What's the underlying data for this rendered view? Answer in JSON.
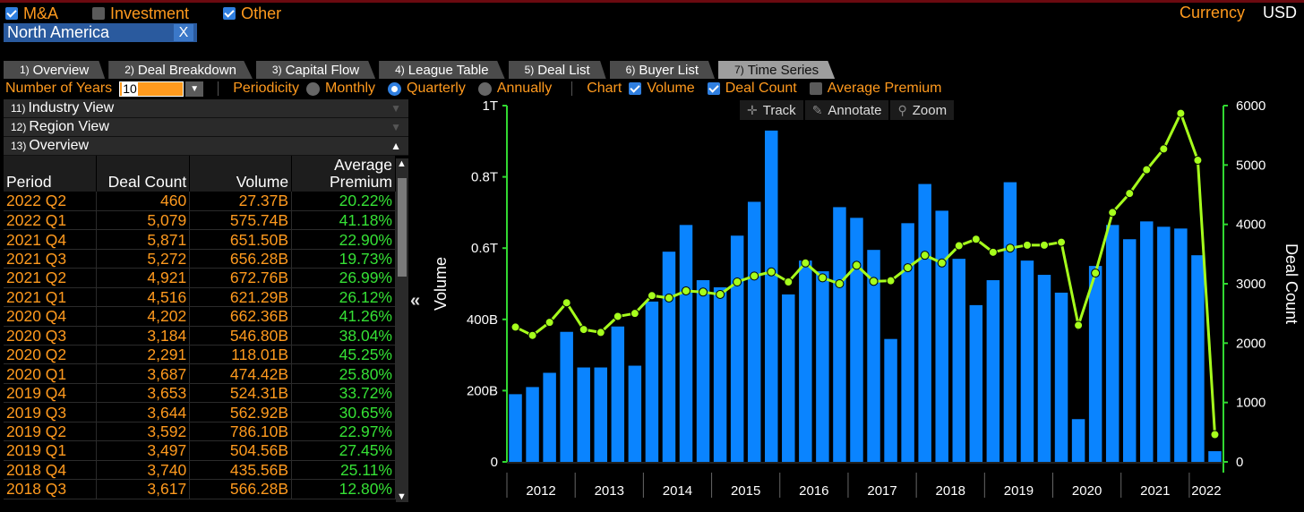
{
  "filters": [
    {
      "label": "M&A",
      "checked": true
    },
    {
      "label": "Investment",
      "checked": false
    },
    {
      "label": "Other",
      "checked": true
    }
  ],
  "currency": {
    "label": "Currency",
    "value": "USD"
  },
  "region": {
    "label": "North America",
    "close": "X"
  },
  "tabs": [
    {
      "num": "1)",
      "label": "Overview"
    },
    {
      "num": "2)",
      "label": "Deal Breakdown"
    },
    {
      "num": "3)",
      "label": "Capital Flow"
    },
    {
      "num": "4)",
      "label": "League Table"
    },
    {
      "num": "5)",
      "label": "Deal List"
    },
    {
      "num": "6)",
      "label": "Buyer List"
    },
    {
      "num": "7)",
      "label": "Time Series"
    }
  ],
  "options": {
    "years_label": "Number of Years",
    "years_value": "10",
    "periodicity_label": "Periodicity",
    "periodicity": [
      "Monthly",
      "Quarterly",
      "Annually"
    ],
    "periodicity_selected": "Quarterly",
    "chart_label": "Chart",
    "chart_toggles": [
      {
        "label": "Volume",
        "checked": true
      },
      {
        "label": "Deal Count",
        "checked": true
      },
      {
        "label": "Average Premium",
        "checked": false
      }
    ]
  },
  "sections": [
    {
      "num": "11)",
      "label": "Industry View"
    },
    {
      "num": "12)",
      "label": "Region View"
    },
    {
      "num": "13)",
      "label": "Overview"
    }
  ],
  "table": {
    "headers": {
      "period": "Period",
      "deal_count": "Deal Count",
      "volume": "Volume",
      "premium": "Average Premium"
    },
    "rows": [
      [
        "2022 Q2",
        "460",
        "27.37B",
        "20.22%"
      ],
      [
        "2022 Q1",
        "5,079",
        "575.74B",
        "41.18%"
      ],
      [
        "2021 Q4",
        "5,871",
        "651.50B",
        "22.90%"
      ],
      [
        "2021 Q3",
        "5,272",
        "656.28B",
        "19.73%"
      ],
      [
        "2021 Q2",
        "4,921",
        "672.76B",
        "26.99%"
      ],
      [
        "2021 Q1",
        "4,516",
        "621.29B",
        "26.12%"
      ],
      [
        "2020 Q4",
        "4,202",
        "662.36B",
        "41.26%"
      ],
      [
        "2020 Q3",
        "3,184",
        "546.80B",
        "38.04%"
      ],
      [
        "2020 Q2",
        "2,291",
        "118.01B",
        "45.25%"
      ],
      [
        "2020 Q1",
        "3,687",
        "474.42B",
        "25.80%"
      ],
      [
        "2019 Q4",
        "3,653",
        "524.31B",
        "33.72%"
      ],
      [
        "2019 Q3",
        "3,644",
        "562.92B",
        "30.65%"
      ],
      [
        "2019 Q2",
        "3,592",
        "786.10B",
        "22.97%"
      ],
      [
        "2019 Q1",
        "3,497",
        "504.56B",
        "27.45%"
      ],
      [
        "2018 Q4",
        "3,740",
        "435.56B",
        "25.11%"
      ],
      [
        "2018 Q3",
        "3,617",
        "566.28B",
        "12.80%"
      ]
    ]
  },
  "chart_toolbar": {
    "track": "Track",
    "annotate": "Annotate",
    "zoom": "Zoom"
  },
  "chart_data": {
    "type": "bar",
    "ylabel": "Volume",
    "y2label": "Deal Count",
    "y_ticks": [
      {
        "value": 0,
        "label": "0"
      },
      {
        "value": 200,
        "label": "200B"
      },
      {
        "value": 400,
        "label": "400B"
      },
      {
        "value": 600,
        "label": "0.6T"
      },
      {
        "value": 800,
        "label": "0.8T"
      },
      {
        "value": 1000,
        "label": "1T"
      }
    ],
    "y2_ticks": [
      0,
      1000,
      2000,
      3000,
      4000,
      5000,
      6000
    ],
    "ylim": [
      0,
      1000
    ],
    "y2lim": [
      0,
      6000
    ],
    "years": [
      "2012",
      "2013",
      "2014",
      "2015",
      "2016",
      "2017",
      "2018",
      "2019",
      "2020",
      "2021",
      "2022"
    ],
    "colors": {
      "bar": "#0a84ff",
      "line": "#a6ff1c",
      "axis": "#31d831"
    },
    "series": [
      {
        "name": "Volume",
        "values": [
          190,
          210,
          250,
          365,
          265,
          265,
          380,
          270,
          450,
          590,
          665,
          510,
          490,
          635,
          730,
          930,
          470,
          565,
          535,
          715,
          685,
          595,
          345,
          670,
          780,
          705,
          570,
          440,
          510,
          785,
          565,
          525,
          475,
          120,
          550,
          665,
          625,
          675,
          660,
          655,
          580,
          30
        ]
      },
      {
        "name": "Deal Count",
        "values": [
          2270,
          2130,
          2350,
          2680,
          2230,
          2180,
          2450,
          2500,
          2800,
          2760,
          2880,
          2860,
          2820,
          3030,
          3130,
          3200,
          3030,
          3350,
          3100,
          3000,
          3310,
          3040,
          3050,
          3270,
          3480,
          3350,
          3640,
          3750,
          3530,
          3600,
          3650,
          3650,
          3700,
          2300,
          3180,
          4200,
          4520,
          4920,
          5270,
          5870,
          5080,
          460
        ]
      }
    ]
  }
}
